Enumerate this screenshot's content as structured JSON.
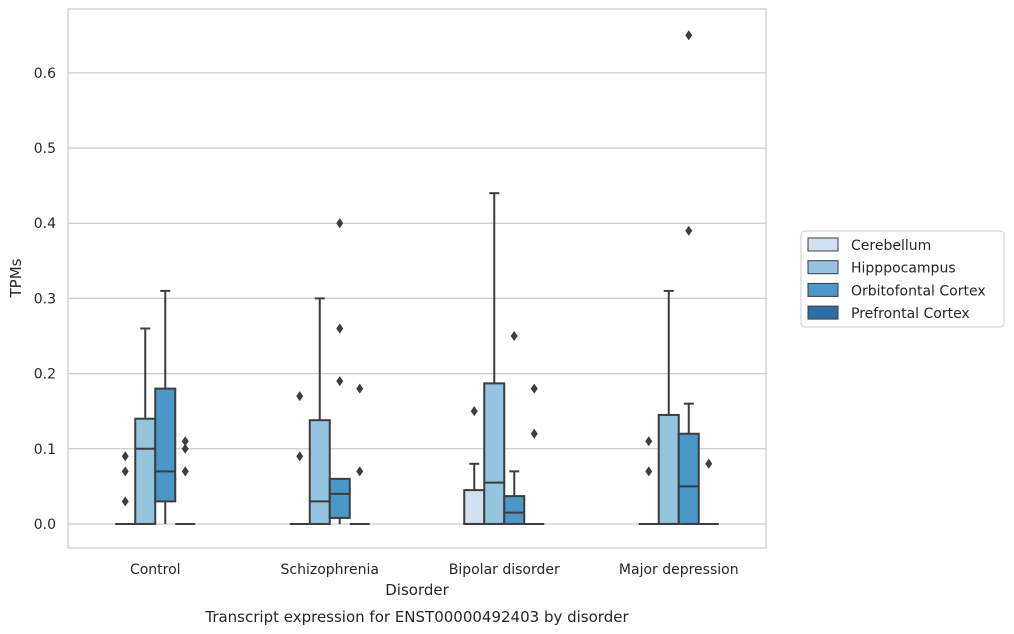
{
  "chart_data": {
    "type": "box",
    "ylabel": "TPMs",
    "xlabel": "Disorder",
    "caption": "Transcript expression for ENST00000492403 by disorder",
    "ylim": [
      -0.032,
      0.685
    ],
    "yticks": [
      0.0,
      0.1,
      0.2,
      0.3,
      0.4,
      0.5,
      0.6
    ],
    "ytick_labels": [
      "0.0",
      "0.1",
      "0.2",
      "0.3",
      "0.4",
      "0.5",
      "0.6"
    ],
    "grid": true,
    "legend_position": "right",
    "categories": [
      "Control",
      "Schizophrenia",
      "Bipolar disorder",
      "Major depression"
    ],
    "series": [
      {
        "name": "Cerebellum",
        "color": "#d0e1f2",
        "boxes": [
          {
            "q1": 0,
            "median": 0,
            "q3": 0,
            "whislo": 0,
            "whishi": 0,
            "fliers": [
              0.03,
              0.07,
              0.09
            ]
          },
          {
            "q1": 0,
            "median": 0,
            "q3": 0,
            "whislo": 0,
            "whishi": 0,
            "fliers": [
              0.09,
              0.17
            ]
          },
          {
            "q1": 0,
            "median": 0,
            "q3": 0.045,
            "whislo": 0,
            "whishi": 0.08,
            "fliers": [
              0.15
            ]
          },
          {
            "q1": 0,
            "median": 0,
            "q3": 0,
            "whislo": 0,
            "whishi": 0,
            "fliers": [
              0.07,
              0.11
            ]
          }
        ]
      },
      {
        "name": "Hipppocampus",
        "color": "#94c4df",
        "boxes": [
          {
            "q1": 0,
            "median": 0.1,
            "q3": 0.14,
            "whislo": 0,
            "whishi": 0.26,
            "fliers": []
          },
          {
            "q1": 0,
            "median": 0.03,
            "q3": 0.138,
            "whislo": 0,
            "whishi": 0.3,
            "fliers": []
          },
          {
            "q1": 0,
            "median": 0.055,
            "q3": 0.187,
            "whislo": 0,
            "whishi": 0.44,
            "fliers": []
          },
          {
            "q1": 0,
            "median": 0,
            "q3": 0.145,
            "whislo": 0,
            "whishi": 0.31,
            "fliers": []
          }
        ]
      },
      {
        "name": "Orbitofontal Cortex",
        "color": "#4a98c9",
        "boxes": [
          {
            "q1": 0.03,
            "median": 0.07,
            "q3": 0.18,
            "whislo": 0,
            "whishi": 0.31,
            "fliers": []
          },
          {
            "q1": 0.008,
            "median": 0.04,
            "q3": 0.06,
            "whislo": 0,
            "whishi": 0.06,
            "fliers": [
              0.19,
              0.26,
              0.4
            ]
          },
          {
            "q1": 0,
            "median": 0.015,
            "q3": 0.037,
            "whislo": 0,
            "whishi": 0.07,
            "fliers": [
              0.25
            ]
          },
          {
            "q1": 0,
            "median": 0.05,
            "q3": 0.12,
            "whislo": 0,
            "whishi": 0.16,
            "fliers": [
              0.39,
              0.65
            ]
          }
        ]
      },
      {
        "name": "Prefrontal Cortex",
        "color": "#2e6ea6",
        "boxes": [
          {
            "q1": 0,
            "median": 0,
            "q3": 0,
            "whislo": 0,
            "whishi": 0,
            "fliers": [
              0.07,
              0.1,
              0.11
            ]
          },
          {
            "q1": 0,
            "median": 0,
            "q3": 0,
            "whislo": 0,
            "whishi": 0,
            "fliers": [
              0.07,
              0.18
            ]
          },
          {
            "q1": 0,
            "median": 0,
            "q3": 0,
            "whislo": 0,
            "whishi": 0,
            "fliers": [
              0.12,
              0.18
            ]
          },
          {
            "q1": 0,
            "median": 0,
            "q3": 0,
            "whislo": 0,
            "whishi": 0,
            "fliers": [
              0.08
            ]
          }
        ]
      }
    ]
  }
}
